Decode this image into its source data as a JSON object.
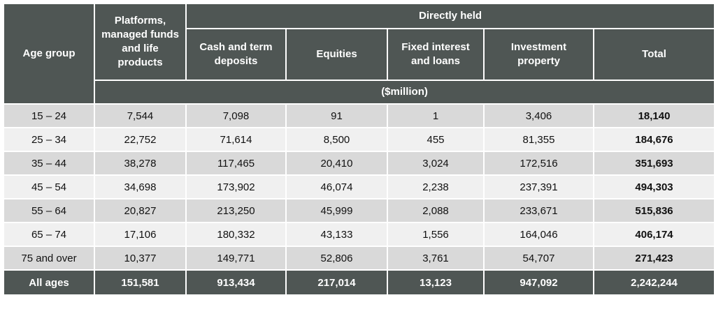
{
  "headers": {
    "age_group": "Age group",
    "platforms": "Platforms, managed funds and life products",
    "directly_held": "Directly held",
    "cash": "Cash and term deposits",
    "equities": "Equities",
    "fixed": "Fixed interest and loans",
    "property": "Investment property",
    "total": "Total",
    "unit": "($million)"
  },
  "rows": [
    [
      "15 – 24",
      "7,544",
      "7,098",
      "91",
      "1",
      "3,406",
      "18,140"
    ],
    [
      "25 – 34",
      "22,752",
      "71,614",
      "8,500",
      "455",
      "81,355",
      "184,676"
    ],
    [
      "35 – 44",
      "38,278",
      "117,465",
      "20,410",
      "3,024",
      "172,516",
      "351,693"
    ],
    [
      "45 – 54",
      "34,698",
      "173,902",
      "46,074",
      "2,238",
      "237,391",
      "494,303"
    ],
    [
      "55 – 64",
      "20,827",
      "213,250",
      "45,999",
      "2,088",
      "233,671",
      "515,836"
    ],
    [
      "65 – 74",
      "17,106",
      "180,332",
      "43,133",
      "1,556",
      "164,046",
      "406,174"
    ],
    [
      "75 and over",
      "10,377",
      "149,771",
      "52,806",
      "3,761",
      "54,707",
      "271,423"
    ]
  ],
  "footer": [
    "All ages",
    "151,581",
    "913,434",
    "217,014",
    "13,123",
    "947,092",
    "2,242,244"
  ]
}
